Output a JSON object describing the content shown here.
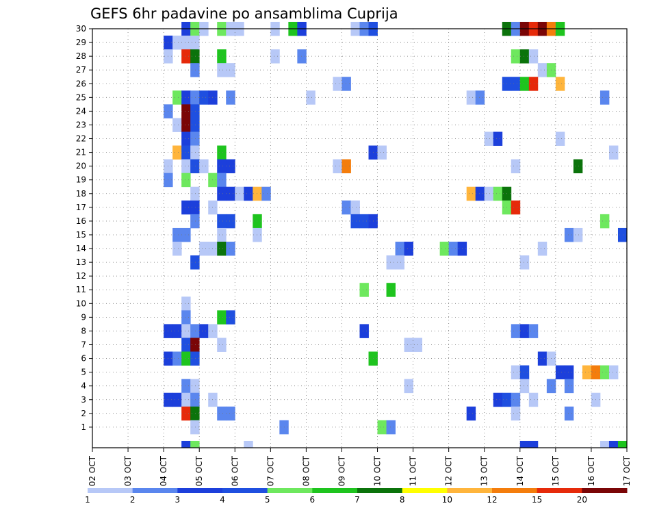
{
  "chart_data": {
    "type": "heatmap",
    "title": "GEFS 6hr padavine po ansamblima Cuprija",
    "xlabel": "",
    "ylabel": "",
    "x_tick_labels": [
      "02 OCT",
      "03 OCT",
      "04 OCT",
      "05 OCT",
      "06 OCT",
      "07 OCT",
      "08 OCT",
      "09 OCT",
      "10 OCT",
      "11 OCT",
      "12 OCT",
      "13 OCT",
      "14 OCT",
      "15 OCT",
      "16 OCT",
      "17 OCT"
    ],
    "y_tick_labels": [
      "1",
      "2",
      "3",
      "4",
      "5",
      "6",
      "7",
      "8",
      "9",
      "10",
      "11",
      "12",
      "13",
      "14",
      "15",
      "16",
      "17",
      "18",
      "19",
      "20",
      "21",
      "22",
      "23",
      "24",
      "25",
      "26",
      "27",
      "28",
      "29",
      "30"
    ],
    "grid": "dotted",
    "members_range": [
      0,
      30
    ],
    "time_steps_6h": 60,
    "legend": {
      "position": "bottom",
      "labels": [
        "1",
        "2",
        "3",
        "4",
        "5",
        "6",
        "7",
        "8",
        "10",
        "12",
        "15",
        "20"
      ],
      "colors": [
        "#b7c8f7",
        "#5a86ee",
        "#1c3fdb",
        "#1f4fe0",
        "#6ee85e",
        "#1ec41e",
        "#0b730b",
        "#ffff00",
        "#ffb53c",
        "#f47d0c",
        "#e62a0a",
        "#7a0506"
      ]
    },
    "cells": [
      [
        30,
        10,
        3
      ],
      [
        30,
        11,
        5
      ],
      [
        30,
        12,
        1
      ],
      [
        30,
        14,
        5
      ],
      [
        30,
        15,
        1
      ],
      [
        30,
        16,
        1
      ],
      [
        30,
        20,
        1
      ],
      [
        30,
        22,
        6
      ],
      [
        30,
        23,
        3
      ],
      [
        30,
        29,
        1
      ],
      [
        30,
        30,
        2
      ],
      [
        30,
        31,
        4
      ],
      [
        30,
        46,
        7
      ],
      [
        30,
        47,
        2
      ],
      [
        30,
        48,
        12
      ],
      [
        30,
        49,
        11
      ],
      [
        30,
        50,
        12
      ],
      [
        30,
        51,
        10
      ],
      [
        30,
        52,
        6
      ],
      [
        29,
        8,
        3
      ],
      [
        29,
        9,
        1
      ],
      [
        29,
        10,
        1
      ],
      [
        29,
        11,
        1
      ],
      [
        28,
        8,
        1
      ],
      [
        28,
        10,
        11
      ],
      [
        28,
        11,
        7
      ],
      [
        28,
        14,
        6
      ],
      [
        28,
        20,
        1
      ],
      [
        28,
        23,
        2
      ],
      [
        28,
        47,
        5
      ],
      [
        28,
        48,
        7
      ],
      [
        28,
        49,
        1
      ],
      [
        27,
        11,
        2
      ],
      [
        27,
        14,
        1
      ],
      [
        27,
        15,
        1
      ],
      [
        27,
        50,
        1
      ],
      [
        27,
        51,
        5
      ],
      [
        26,
        27,
        1
      ],
      [
        26,
        28,
        2
      ],
      [
        26,
        46,
        4
      ],
      [
        26,
        47,
        4
      ],
      [
        26,
        48,
        6
      ],
      [
        26,
        49,
        11
      ],
      [
        26,
        52,
        9
      ],
      [
        25,
        9,
        5
      ],
      [
        25,
        10,
        3
      ],
      [
        25,
        11,
        2
      ],
      [
        25,
        12,
        4
      ],
      [
        25,
        13,
        3
      ],
      [
        25,
        15,
        2
      ],
      [
        25,
        24,
        1
      ],
      [
        25,
        42,
        1
      ],
      [
        25,
        43,
        2
      ],
      [
        25,
        57,
        2
      ],
      [
        24,
        8,
        2
      ],
      [
        24,
        10,
        12
      ],
      [
        24,
        11,
        4
      ],
      [
        23,
        9,
        1
      ],
      [
        23,
        10,
        12
      ],
      [
        23,
        11,
        4
      ],
      [
        22,
        10,
        3
      ],
      [
        22,
        11,
        2
      ],
      [
        22,
        44,
        1
      ],
      [
        22,
        45,
        3
      ],
      [
        22,
        52,
        1
      ],
      [
        21,
        9,
        9
      ],
      [
        21,
        10,
        4
      ],
      [
        21,
        11,
        1
      ],
      [
        21,
        14,
        6
      ],
      [
        21,
        31,
        3
      ],
      [
        21,
        32,
        1
      ],
      [
        21,
        58,
        1
      ],
      [
        20,
        8,
        1
      ],
      [
        20,
        10,
        1
      ],
      [
        20,
        11,
        4
      ],
      [
        20,
        12,
        1
      ],
      [
        20,
        14,
        3
      ],
      [
        20,
        15,
        3
      ],
      [
        20,
        27,
        1
      ],
      [
        20,
        28,
        10
      ],
      [
        20,
        47,
        1
      ],
      [
        20,
        54,
        7
      ],
      [
        19,
        8,
        2
      ],
      [
        19,
        10,
        5
      ],
      [
        19,
        13,
        5
      ],
      [
        19,
        14,
        2
      ],
      [
        18,
        11,
        1
      ],
      [
        18,
        14,
        3
      ],
      [
        18,
        15,
        3
      ],
      [
        18,
        16,
        1
      ],
      [
        18,
        17,
        3
      ],
      [
        18,
        18,
        9
      ],
      [
        18,
        19,
        2
      ],
      [
        18,
        42,
        9
      ],
      [
        18,
        43,
        3
      ],
      [
        18,
        44,
        1
      ],
      [
        18,
        45,
        5
      ],
      [
        18,
        46,
        7
      ],
      [
        17,
        10,
        3
      ],
      [
        17,
        11,
        3
      ],
      [
        17,
        13,
        1
      ],
      [
        17,
        28,
        2
      ],
      [
        17,
        29,
        1
      ],
      [
        17,
        46,
        5
      ],
      [
        17,
        47,
        11
      ],
      [
        16,
        11,
        2
      ],
      [
        16,
        14,
        4
      ],
      [
        16,
        15,
        4
      ],
      [
        16,
        18,
        6
      ],
      [
        16,
        29,
        4
      ],
      [
        16,
        30,
        4
      ],
      [
        16,
        31,
        3
      ],
      [
        16,
        57,
        5
      ],
      [
        15,
        9,
        2
      ],
      [
        15,
        10,
        2
      ],
      [
        15,
        14,
        1
      ],
      [
        15,
        18,
        1
      ],
      [
        15,
        53,
        2
      ],
      [
        15,
        54,
        1
      ],
      [
        15,
        59,
        4
      ],
      [
        14,
        9,
        1
      ],
      [
        14,
        12,
        1
      ],
      [
        14,
        13,
        1
      ],
      [
        14,
        14,
        7
      ],
      [
        14,
        15,
        2
      ],
      [
        14,
        34,
        2
      ],
      [
        14,
        35,
        3
      ],
      [
        14,
        39,
        5
      ],
      [
        14,
        40,
        2
      ],
      [
        14,
        41,
        3
      ],
      [
        14,
        50,
        1
      ],
      [
        13,
        11,
        4
      ],
      [
        13,
        33,
        1
      ],
      [
        13,
        34,
        1
      ],
      [
        13,
        48,
        1
      ],
      [
        11,
        30,
        5
      ],
      [
        11,
        33,
        6
      ],
      [
        10,
        10,
        1
      ],
      [
        9,
        10,
        2
      ],
      [
        9,
        14,
        6
      ],
      [
        9,
        15,
        4
      ],
      [
        8,
        8,
        3
      ],
      [
        8,
        9,
        3
      ],
      [
        8,
        10,
        1
      ],
      [
        8,
        11,
        2
      ],
      [
        8,
        12,
        3
      ],
      [
        8,
        13,
        1
      ],
      [
        8,
        30,
        3
      ],
      [
        8,
        47,
        2
      ],
      [
        8,
        48,
        3
      ],
      [
        8,
        49,
        2
      ],
      [
        7,
        10,
        4
      ],
      [
        7,
        11,
        12
      ],
      [
        7,
        14,
        1
      ],
      [
        7,
        35,
        1
      ],
      [
        7,
        36,
        1
      ],
      [
        6,
        8,
        3
      ],
      [
        6,
        9,
        2
      ],
      [
        6,
        10,
        6
      ],
      [
        6,
        11,
        4
      ],
      [
        6,
        31,
        6
      ],
      [
        6,
        50,
        3
      ],
      [
        6,
        51,
        1
      ],
      [
        5,
        47,
        1
      ],
      [
        5,
        48,
        4
      ],
      [
        5,
        52,
        3
      ],
      [
        5,
        53,
        3
      ],
      [
        5,
        55,
        9
      ],
      [
        5,
        56,
        10
      ],
      [
        5,
        57,
        5
      ],
      [
        5,
        58,
        1
      ],
      [
        4,
        10,
        2
      ],
      [
        4,
        11,
        1
      ],
      [
        4,
        35,
        1
      ],
      [
        4,
        48,
        1
      ],
      [
        4,
        51,
        2
      ],
      [
        4,
        53,
        2
      ],
      [
        3,
        8,
        3
      ],
      [
        3,
        9,
        3
      ],
      [
        3,
        10,
        1
      ],
      [
        3,
        11,
        2
      ],
      [
        3,
        13,
        1
      ],
      [
        3,
        45,
        3
      ],
      [
        3,
        46,
        4
      ],
      [
        3,
        47,
        2
      ],
      [
        3,
        49,
        1
      ],
      [
        3,
        56,
        1
      ],
      [
        2,
        10,
        11
      ],
      [
        2,
        11,
        7
      ],
      [
        2,
        14,
        2
      ],
      [
        2,
        15,
        2
      ],
      [
        2,
        42,
        3
      ],
      [
        2,
        47,
        1
      ],
      [
        2,
        53,
        2
      ],
      [
        1,
        11,
        1
      ],
      [
        1,
        21,
        2
      ],
      [
        1,
        32,
        5
      ],
      [
        1,
        33,
        2
      ],
      [
        0,
        10,
        3
      ],
      [
        0,
        11,
        5
      ],
      [
        0,
        17,
        1
      ],
      [
        0,
        48,
        3
      ],
      [
        0,
        49,
        3
      ],
      [
        0,
        57,
        1
      ],
      [
        0,
        58,
        3
      ],
      [
        0,
        59,
        6
      ]
    ]
  }
}
